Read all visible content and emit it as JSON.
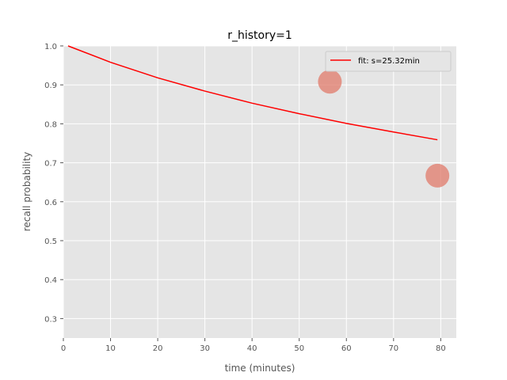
{
  "chart_data": {
    "type": "line",
    "title": "r_history=1",
    "xlabel": "time (minutes)",
    "ylabel": "recall probability",
    "xlim": [
      0,
      83.3
    ],
    "ylim": [
      0.25,
      1.0
    ],
    "xticks": [
      0,
      10,
      20,
      30,
      40,
      50,
      60,
      70,
      80
    ],
    "yticks": [
      0.3,
      0.4,
      0.5,
      0.6,
      0.7,
      0.8,
      0.9,
      1.0
    ],
    "grid": true,
    "legend_position": "top-right",
    "series": [
      {
        "name": "fit: s=25.32min",
        "kind": "line",
        "color": "#ff0000",
        "x": [
          1,
          10,
          20,
          30,
          40,
          50,
          60,
          70,
          79.3
        ],
        "y": [
          1.0,
          0.958,
          0.918,
          0.884,
          0.853,
          0.826,
          0.801,
          0.779,
          0.759
        ]
      },
      {
        "kind": "scatter",
        "color": "#e07a6a",
        "points": [
          {
            "x": 56.5,
            "y": 0.908
          },
          {
            "x": 79.3,
            "y": 0.667
          }
        ]
      }
    ]
  }
}
